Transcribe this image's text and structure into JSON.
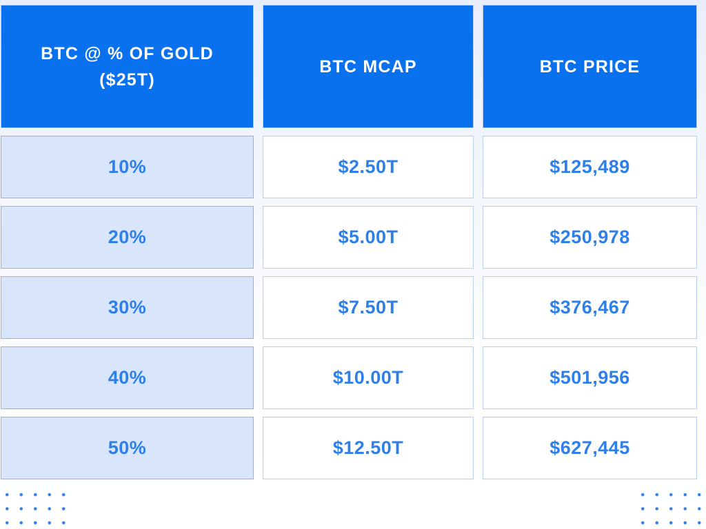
{
  "colors": {
    "header_bg": "#0a71ee",
    "header_text": "#ffffff",
    "row_label_bg": "#d8e5fa",
    "row_label_border": "#8fb3ee",
    "value_bg": "#ffffff",
    "value_border": "#b9cff2",
    "value_text": "#2e80e8",
    "dot": "#2f7ff0"
  },
  "table": {
    "headers": [
      "BTC @ % OF GOLD ($25T)",
      "BTC MCAP",
      "BTC PRICE"
    ],
    "rows": [
      [
        "10%",
        "$2.50T",
        "$125,489"
      ],
      [
        "20%",
        "$5.00T",
        "$250,978"
      ],
      [
        "30%",
        "$7.50T",
        "$376,467"
      ],
      [
        "40%",
        "$10.00T",
        "$501,956"
      ],
      [
        "50%",
        "$12.50T",
        "$627,445"
      ]
    ]
  },
  "chart_data": {
    "type": "table",
    "title": "BTC @ % OF GOLD ($25T)",
    "columns": [
      "BTC @ % OF GOLD ($25T)",
      "BTC MCAP",
      "BTC PRICE"
    ],
    "gold_market_cap_label": "$25T",
    "percent_of_gold": [
      10,
      20,
      30,
      40,
      50
    ],
    "btc_mcap": [
      "$2.50T",
      "$5.00T",
      "$7.50T",
      "$10.00T",
      "$12.50T"
    ],
    "btc_price": [
      "$125,489",
      "$250,978",
      "$376,467",
      "$501,956",
      "$627,445"
    ],
    "btc_mcap_trillions_usd": [
      2.5,
      5.0,
      7.5,
      10.0,
      12.5
    ],
    "btc_price_usd": [
      125489,
      250978,
      376467,
      501956,
      627445
    ]
  }
}
